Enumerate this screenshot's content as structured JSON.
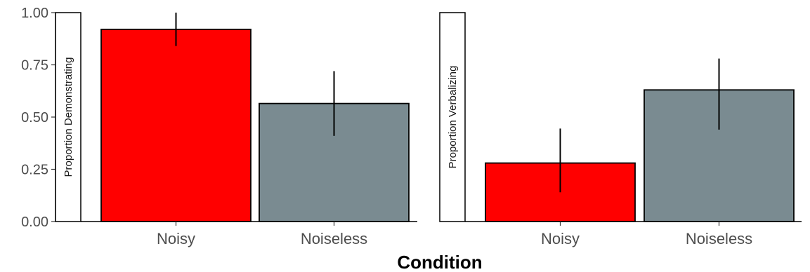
{
  "chart_data": {
    "type": "bar",
    "xlabel": "Condition",
    "ylim": [
      0,
      1
    ],
    "yticks": [
      "0.00",
      "0.25",
      "0.50",
      "0.75",
      "1.00"
    ],
    "categories": [
      "Noisy",
      "Noiseless"
    ],
    "colors": {
      "Noisy": "#ff0000",
      "Noiseless": "#7a8b91"
    },
    "panels": [
      {
        "strip": "Proportion Demonstrating",
        "values": [
          0.92,
          0.565
        ],
        "error": [
          [
            0.84,
            1.0
          ],
          [
            0.41,
            0.72
          ]
        ]
      },
      {
        "strip": "Proportion Verbalizing",
        "values": [
          0.28,
          0.63
        ],
        "error": [
          [
            0.14,
            0.445
          ],
          [
            0.44,
            0.78
          ]
        ]
      }
    ]
  }
}
